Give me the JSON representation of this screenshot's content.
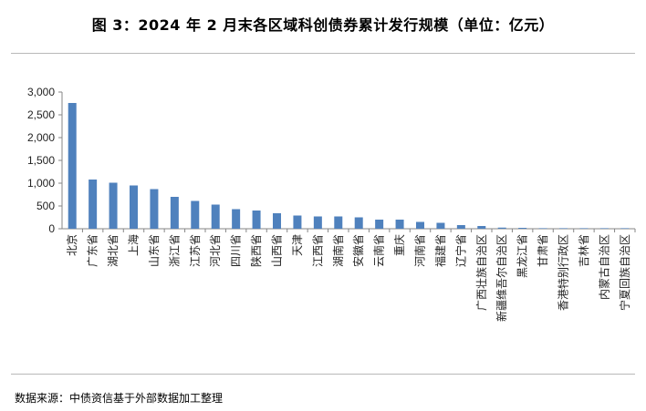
{
  "title": "图 3：2024 年 2 月末各区域科创债券累计发行规模（单位：亿元）",
  "source": "数据来源：中债资信基于外部数据加工整理",
  "chart_data": {
    "type": "bar",
    "title": "图 3：2024 年 2 月末各区域科创债券累计发行规模（单位：亿元）",
    "xlabel": "",
    "ylabel": "",
    "ylim": [
      0,
      3000
    ],
    "yticks": [
      0,
      500,
      1000,
      1500,
      2000,
      2500,
      3000
    ],
    "ytick_labels": [
      "0",
      "500",
      "1,000",
      "1,500",
      "2,000",
      "2,500",
      "3,000"
    ],
    "grid": false,
    "legend": "none",
    "bar_color": "#4f81bd",
    "categories": [
      "北京",
      "广东省",
      "湖北省",
      "上海",
      "山东省",
      "浙江省",
      "江苏省",
      "河北省",
      "四川省",
      "陕西省",
      "山西省",
      "天津",
      "江西省",
      "湖南省",
      "安徽省",
      "云南省",
      "重庆",
      "河南省",
      "福建省",
      "辽宁省",
      "广西壮族自治区",
      "新疆维吾尔自治区",
      "黑龙江省",
      "甘肃省",
      "香港特别行政区",
      "吉林省",
      "内蒙古自治区",
      "宁夏回族自治区"
    ],
    "values": [
      2760,
      1080,
      1010,
      950,
      870,
      700,
      610,
      530,
      430,
      400,
      340,
      290,
      270,
      270,
      250,
      200,
      200,
      150,
      130,
      80,
      60,
      25,
      20,
      8,
      5,
      4,
      3,
      2
    ]
  }
}
